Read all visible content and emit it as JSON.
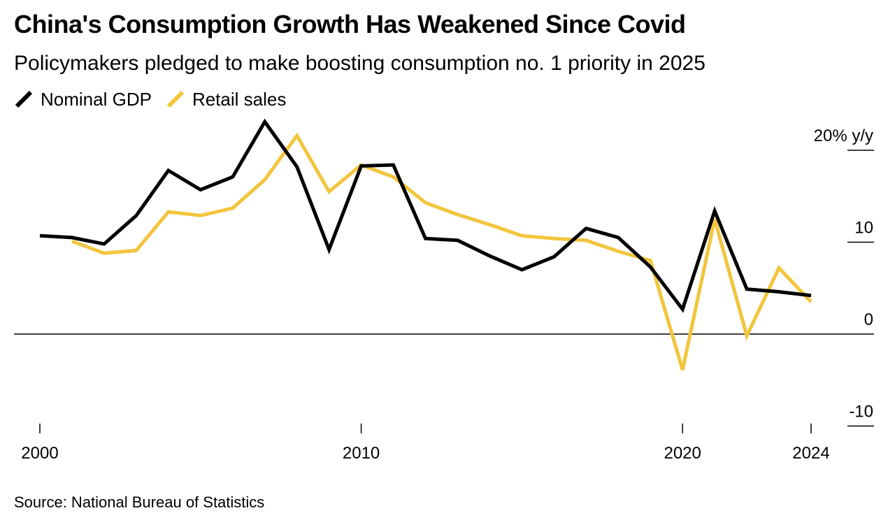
{
  "title": "China's Consumption Growth Has Weakened Since Covid",
  "subtitle": "Policymakers pledged to make boosting consumption no. 1 priority in 2025",
  "source": "Source: National Bureau of Statistics",
  "colors": {
    "nominal_gdp": "#000000",
    "retail_sales": "#f2c53d",
    "zero_line": "#000000"
  },
  "chart_data": {
    "type": "line",
    "x_tick_labels": [
      "2000",
      "2010",
      "2020",
      "2024"
    ],
    "x_ticks": [
      2000,
      2010,
      2020,
      2024
    ],
    "xlim": [
      2000,
      2024
    ],
    "y_ticks": [
      20,
      10,
      0,
      -10
    ],
    "y_tick_labels": [
      "20% y/y",
      "10",
      "0",
      "-10"
    ],
    "ylim": [
      -10,
      20
    ],
    "grid": false,
    "legend_position": "top-left",
    "series": [
      {
        "key": "nominal_gdp",
        "name": "Nominal GDP",
        "x": [
          2000,
          2001,
          2002,
          2003,
          2004,
          2005,
          2006,
          2007,
          2008,
          2009,
          2010,
          2011,
          2012,
          2013,
          2014,
          2015,
          2016,
          2017,
          2018,
          2019,
          2020,
          2021,
          2022,
          2023,
          2024
        ],
        "values": [
          10.7,
          10.5,
          9.8,
          12.9,
          17.8,
          15.7,
          17.1,
          23.1,
          18.2,
          9.2,
          18.3,
          18.4,
          10.4,
          10.2,
          8.5,
          7.0,
          8.4,
          11.5,
          10.5,
          7.3,
          2.7,
          13.4,
          4.9,
          4.6,
          4.2
        ]
      },
      {
        "key": "retail_sales",
        "name": "Retail sales",
        "x": [
          2001,
          2002,
          2003,
          2004,
          2005,
          2006,
          2007,
          2008,
          2009,
          2010,
          2011,
          2012,
          2013,
          2014,
          2015,
          2016,
          2017,
          2018,
          2019,
          2020,
          2021,
          2022,
          2023,
          2024
        ],
        "values": [
          10.1,
          8.8,
          9.1,
          13.3,
          12.9,
          13.7,
          16.8,
          21.6,
          15.5,
          18.4,
          17.1,
          14.3,
          13.0,
          11.9,
          10.7,
          10.4,
          10.2,
          9.0,
          8.0,
          -3.9,
          12.5,
          -0.2,
          7.2,
          3.5
        ]
      }
    ]
  }
}
